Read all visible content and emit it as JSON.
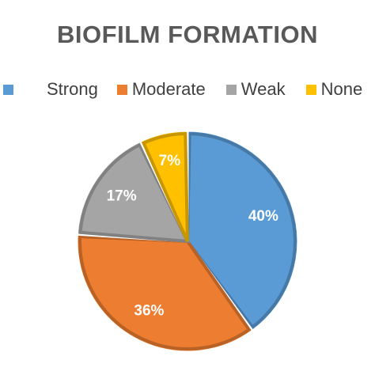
{
  "chart_data": {
    "type": "pie",
    "title": "BIOFILM FORMATION",
    "categories": [
      "Strong",
      "Moderate",
      "Weak",
      "None"
    ],
    "values": [
      40,
      36,
      17,
      7
    ],
    "labels": [
      "40%",
      "36%",
      "17%",
      "7%"
    ],
    "colors": [
      "#5B9BD5",
      "#ED7D31",
      "#A5A5A5",
      "#FFC000"
    ],
    "legend_position": "top",
    "start_angle_deg": 0,
    "direction": "clockwise"
  }
}
